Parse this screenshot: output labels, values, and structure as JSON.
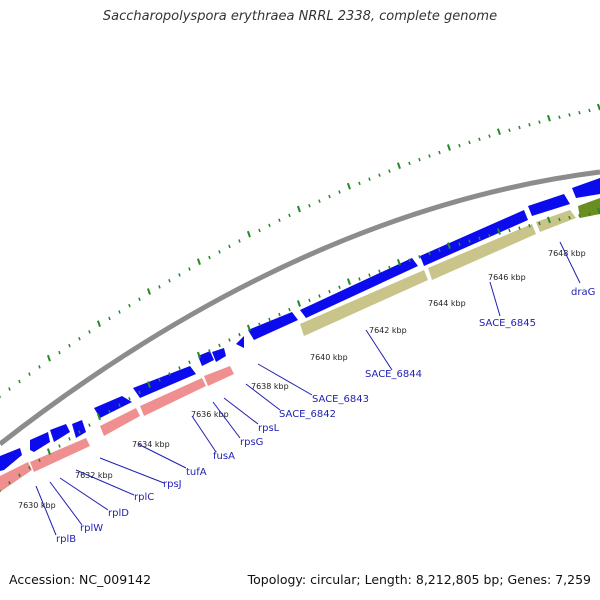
{
  "title": "Saccharopolyspora erythraea NRRL 2338, complete genome",
  "footer": {
    "accession": "Accession: NC_009142",
    "summary": "Topology: circular; Length: 8,212,805 bp; Genes: 7,259"
  },
  "colors": {
    "backbone": "#8c8c8c",
    "gene_forward": "#0b0bee",
    "rrna_or_ribosomal": "#ef8f8f",
    "hypothetical": "#c8c48a",
    "drag": "#6b8e23",
    "label_text": "#1f1fb4",
    "tick": "#228b22"
  },
  "kbp_labels": [
    "7630 kbp",
    "7632 kbp",
    "7634 kbp",
    "7636 kbp",
    "7638 kbp",
    "7640 kbp",
    "7642 kbp",
    "7644 kbp",
    "7646 kbp",
    "7648 kbp"
  ],
  "gene_labels": [
    "rplB",
    "rplW",
    "rplD",
    "rplC",
    "rpsJ",
    "tufA",
    "fusA",
    "rpsG",
    "rpsL",
    "SACE_6842",
    "SACE_6843",
    "SACE_6844",
    "SACE_6845",
    "draG"
  ]
}
